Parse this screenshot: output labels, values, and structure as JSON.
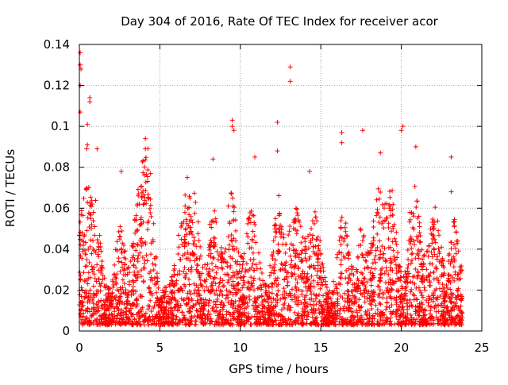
{
  "chart_data": {
    "type": "scatter",
    "title": "Day 304 of 2016, Rate Of TEC Index for receiver acor",
    "xlabel": "GPS time / hours",
    "ylabel": "ROTI / TECUs",
    "xlim": [
      0,
      25
    ],
    "ylim": [
      0,
      0.14
    ],
    "x_ticks": [
      0,
      5,
      10,
      15,
      20,
      25
    ],
    "x_tick_labels": [
      "0",
      "5",
      "10",
      "15",
      "20",
      "25"
    ],
    "y_ticks": [
      0,
      0.02,
      0.04,
      0.06,
      0.08,
      0.1,
      0.12,
      0.14
    ],
    "y_tick_labels": [
      "0",
      "0.02",
      "0.04",
      "0.06",
      "0.08",
      "0.1",
      "0.12",
      "0.14"
    ],
    "grid": true,
    "marker": "plus",
    "series_color": "#ff0000",
    "data_x_range": [
      0,
      23.8
    ],
    "highlighted_points": [
      {
        "x": 0.05,
        "y": 0.136
      },
      {
        "x": 0.05,
        "y": 0.13
      },
      {
        "x": 0.1,
        "y": 0.128
      },
      {
        "x": 0.05,
        "y": 0.12
      },
      {
        "x": 0.05,
        "y": 0.107
      },
      {
        "x": 0.65,
        "y": 0.114
      },
      {
        "x": 0.65,
        "y": 0.112
      },
      {
        "x": 0.5,
        "y": 0.101
      },
      {
        "x": 0.5,
        "y": 0.091
      },
      {
        "x": 0.45,
        "y": 0.089
      },
      {
        "x": 1.1,
        "y": 0.089
      },
      {
        "x": 4.1,
        "y": 0.094
      },
      {
        "x": 4.1,
        "y": 0.089
      },
      {
        "x": 9.5,
        "y": 0.103
      },
      {
        "x": 9.5,
        "y": 0.1
      },
      {
        "x": 9.6,
        "y": 0.098
      },
      {
        "x": 12.3,
        "y": 0.102
      },
      {
        "x": 12.3,
        "y": 0.088
      },
      {
        "x": 13.1,
        "y": 0.129
      },
      {
        "x": 13.1,
        "y": 0.122
      },
      {
        "x": 16.3,
        "y": 0.097
      },
      {
        "x": 16.3,
        "y": 0.092
      },
      {
        "x": 17.6,
        "y": 0.098
      },
      {
        "x": 20.1,
        "y": 0.1
      },
      {
        "x": 20.0,
        "y": 0.098
      },
      {
        "x": 20.9,
        "y": 0.09
      },
      {
        "x": 23.1,
        "y": 0.085
      },
      {
        "x": 23.1,
        "y": 0.068
      },
      {
        "x": 2.6,
        "y": 0.078
      },
      {
        "x": 6.7,
        "y": 0.075
      },
      {
        "x": 8.3,
        "y": 0.084
      },
      {
        "x": 10.9,
        "y": 0.085
      },
      {
        "x": 14.3,
        "y": 0.078
      },
      {
        "x": 18.7,
        "y": 0.087
      }
    ]
  }
}
